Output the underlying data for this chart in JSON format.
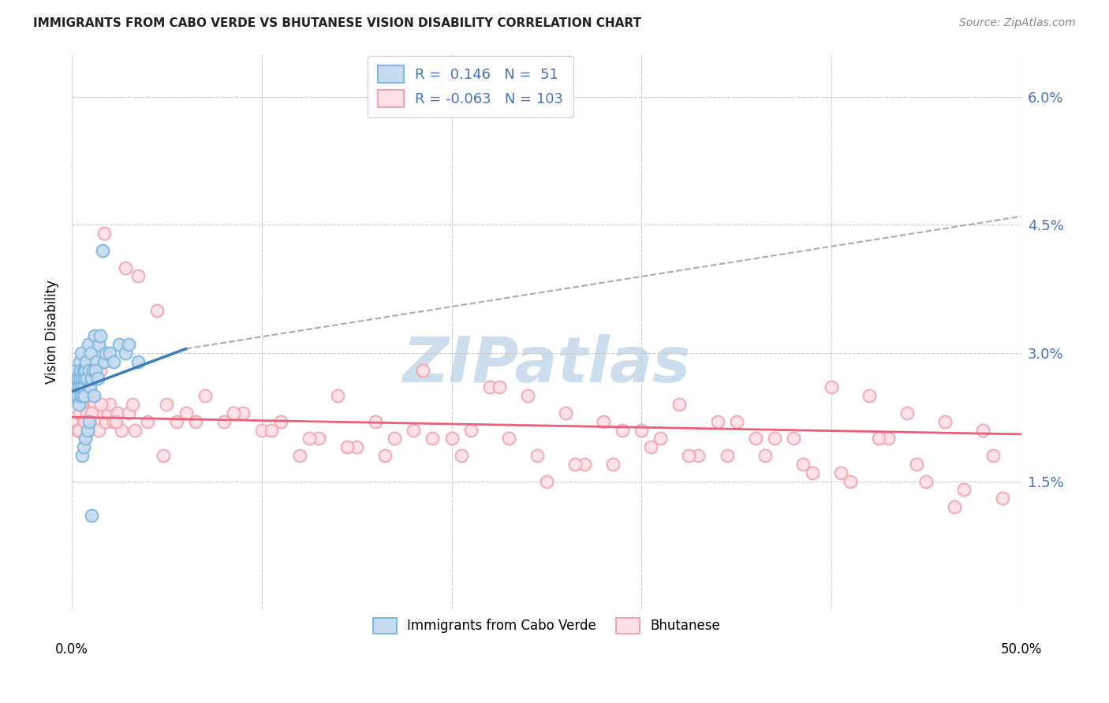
{
  "title": "IMMIGRANTS FROM CABO VERDE VS BHUTANESE VISION DISABILITY CORRELATION CHART",
  "source": "Source: ZipAtlas.com",
  "ylabel": "Vision Disability",
  "yticks": [
    "1.5%",
    "3.0%",
    "4.5%",
    "6.0%"
  ],
  "ytick_vals": [
    1.5,
    3.0,
    4.5,
    6.0
  ],
  "legend_label1": "Immigrants from Cabo Verde",
  "legend_label2": "Bhutanese",
  "R1": 0.146,
  "N1": 51,
  "R2": -0.063,
  "N2": 103,
  "xlim": [
    0.0,
    50.0
  ],
  "ylim": [
    0.0,
    6.5
  ],
  "color1": "#7db8e0",
  "color2": "#f4a4b0",
  "color1_face": "#c6dbef",
  "color2_face": "#fce0e5",
  "trendline1_color": "#3a7ebf",
  "trendline2_color": "#e8607a",
  "watermark_color": "#ccdded",
  "cabo_verde_x": [
    0.1,
    0.15,
    0.2,
    0.25,
    0.3,
    0.3,
    0.35,
    0.35,
    0.4,
    0.4,
    0.45,
    0.45,
    0.5,
    0.5,
    0.55,
    0.55,
    0.6,
    0.6,
    0.65,
    0.65,
    0.7,
    0.75,
    0.8,
    0.85,
    0.9,
    0.95,
    1.0,
    1.05,
    1.1,
    1.15,
    1.2,
    1.3,
    1.4,
    1.5,
    1.6,
    1.7,
    1.8,
    2.0,
    2.2,
    2.5,
    2.8,
    3.0,
    3.5,
    1.25,
    1.35,
    0.52,
    0.62,
    0.72,
    0.82,
    0.92,
    1.02
  ],
  "cabo_verde_y": [
    2.7,
    2.5,
    2.8,
    2.6,
    2.7,
    2.5,
    2.6,
    2.4,
    2.9,
    2.7,
    2.5,
    2.8,
    2.6,
    3.0,
    2.7,
    2.5,
    2.8,
    2.6,
    2.7,
    2.5,
    2.8,
    2.9,
    2.7,
    3.1,
    2.8,
    2.6,
    3.0,
    2.7,
    2.8,
    2.5,
    3.2,
    2.9,
    3.1,
    3.2,
    4.2,
    2.9,
    3.0,
    3.0,
    2.9,
    3.1,
    3.0,
    3.1,
    2.9,
    2.8,
    2.7,
    1.8,
    1.9,
    2.0,
    2.1,
    2.2,
    1.1
  ],
  "bhutanese_x": [
    0.2,
    0.3,
    0.4,
    0.5,
    0.6,
    0.7,
    0.8,
    0.9,
    1.0,
    1.1,
    1.2,
    1.3,
    1.4,
    1.5,
    1.6,
    1.7,
    1.8,
    1.9,
    2.0,
    2.2,
    2.4,
    2.6,
    2.8,
    3.0,
    3.2,
    3.5,
    4.0,
    4.5,
    5.0,
    5.5,
    6.0,
    7.0,
    8.0,
    9.0,
    10.0,
    11.0,
    12.0,
    13.0,
    14.0,
    15.0,
    16.0,
    17.0,
    18.0,
    19.0,
    20.0,
    21.0,
    22.0,
    23.0,
    24.0,
    25.0,
    26.0,
    27.0,
    28.0,
    29.0,
    30.0,
    31.0,
    32.0,
    33.0,
    34.0,
    35.0,
    36.0,
    37.0,
    38.0,
    39.0,
    40.0,
    41.0,
    42.0,
    43.0,
    44.0,
    45.0,
    46.0,
    47.0,
    48.0,
    49.0,
    0.35,
    0.65,
    1.05,
    1.55,
    2.3,
    3.3,
    4.8,
    6.5,
    8.5,
    10.5,
    12.5,
    14.5,
    16.5,
    18.5,
    20.5,
    22.5,
    24.5,
    26.5,
    28.5,
    30.5,
    32.5,
    34.5,
    36.5,
    38.5,
    40.5,
    42.5,
    44.5,
    46.5,
    48.5
  ],
  "bhutanese_y": [
    2.2,
    2.1,
    2.3,
    2.4,
    2.2,
    2.0,
    2.3,
    2.1,
    2.5,
    2.3,
    2.4,
    2.2,
    2.1,
    2.8,
    2.3,
    4.4,
    2.2,
    2.3,
    2.4,
    2.2,
    2.3,
    2.1,
    4.0,
    2.3,
    2.4,
    3.9,
    2.2,
    3.5,
    2.4,
    2.2,
    2.3,
    2.5,
    2.2,
    2.3,
    2.1,
    2.2,
    1.8,
    2.0,
    2.5,
    1.9,
    2.2,
    2.0,
    2.1,
    2.0,
    2.0,
    2.1,
    2.6,
    2.0,
    2.5,
    1.5,
    2.3,
    1.7,
    2.2,
    2.1,
    2.1,
    2.0,
    2.4,
    1.8,
    2.2,
    2.2,
    2.0,
    2.0,
    2.0,
    1.6,
    2.6,
    1.5,
    2.5,
    2.0,
    2.3,
    1.5,
    2.2,
    1.4,
    2.1,
    1.3,
    2.1,
    2.2,
    2.3,
    2.4,
    2.2,
    2.1,
    1.8,
    2.2,
    2.3,
    2.1,
    2.0,
    1.9,
    1.8,
    2.8,
    1.8,
    2.6,
    1.8,
    1.7,
    1.7,
    1.9,
    1.8,
    1.8,
    1.8,
    1.7,
    1.6,
    2.0,
    1.7,
    1.2,
    1.8
  ],
  "cabo_verde_xmax": 6.0,
  "trendline1_x0": 0.0,
  "trendline1_y0": 2.55,
  "trendline1_x1": 6.0,
  "trendline1_y1": 3.05,
  "trendline1_dash_x1": 50.0,
  "trendline1_dash_y1": 4.6,
  "trendline2_x0": 0.0,
  "trendline2_y0": 2.25,
  "trendline2_x1": 50.0,
  "trendline2_y1": 2.05
}
